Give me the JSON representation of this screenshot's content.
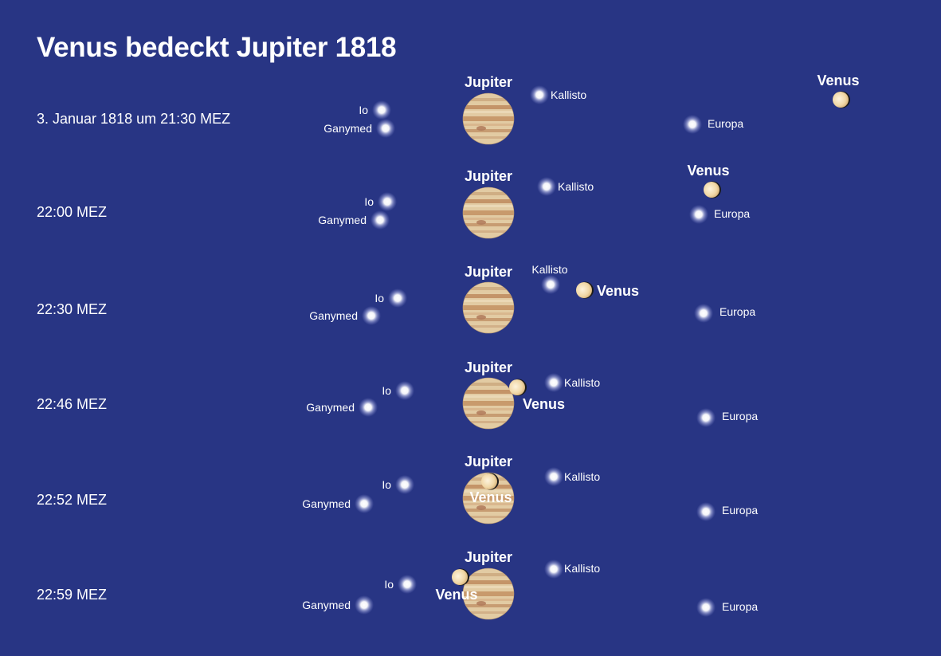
{
  "title": "Venus bedeckt Jupiter 1818",
  "labels": {
    "jupiter": "Jupiter",
    "venus": "Venus",
    "io": "Io",
    "ganymed": "Ganymed",
    "kallisto": "Kallisto",
    "europa": "Europa"
  },
  "frames": [
    {
      "time": "3. Januar 1818 um 21:30 MEZ"
    },
    {
      "time": "22:00 MEZ"
    },
    {
      "time": "22:30 MEZ"
    },
    {
      "time": "22:46 MEZ"
    },
    {
      "time": "22:52 MEZ"
    },
    {
      "time": "22:59 MEZ"
    }
  ],
  "colors": {
    "background": "#283584",
    "text": "#ffffff",
    "jupiter_base": "#dfc7a0",
    "jupiter_band": "#c99a72",
    "venus": "#f1dcae",
    "moon_glow": "#ffffff"
  }
}
